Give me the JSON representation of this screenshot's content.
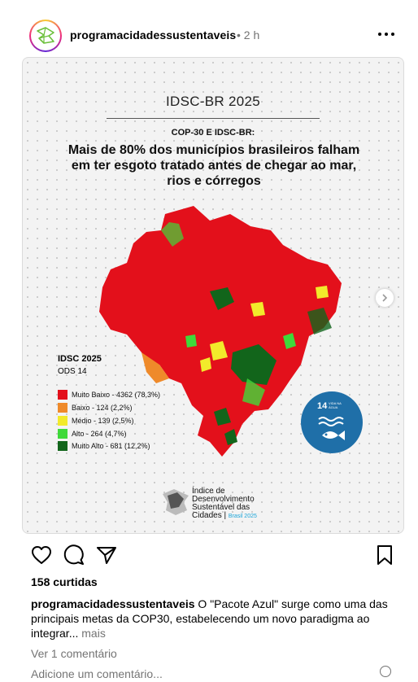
{
  "post": {
    "username": "programacidadessustentaveis",
    "time": "• 2 h"
  },
  "image": {
    "title": "IDSC-BR 2025",
    "kicker": "COP-30 E IDSC-BR:",
    "headline": "Mais de 80% dos municípios brasileiros falham em ter esgoto tratado antes de chegar ao mar, rios e córregos",
    "legend_title": "IDSC 2025",
    "legend_subtitle": "ODS 14",
    "legend": [
      {
        "label": "Muito Baixo - 4362 (78,3%)",
        "color": "#e3101b"
      },
      {
        "label": "Baixo - 124 (2,2%)",
        "color": "#ef8a2a"
      },
      {
        "label": "Médio - 139 (2,5%)",
        "color": "#f2ea2b"
      },
      {
        "label": "Alto - 264 (4,7%)",
        "color": "#3fd93a"
      },
      {
        "label": "Muito Alto - 681 (12,2%)",
        "color": "#12651b"
      }
    ],
    "sdg_number": "14",
    "sdg_label": "VIDA NA ÁGUA",
    "footer_lines": [
      "Índice de",
      "Desenvolvimento",
      "Sustentável das",
      "Cidades |"
    ],
    "footer_year": "Brasil 2025"
  },
  "likes": "158 curtidas",
  "caption": {
    "username": "programacidadessustentaveis",
    "text": "O \"Pacote Azul\" surge como uma das principais metas da COP30, estabelecendo um novo paradigma ao integrar...",
    "more": "mais"
  },
  "view_comments": "Ver 1 comentário",
  "add_comment_placeholder": "Adicione um comentário..."
}
